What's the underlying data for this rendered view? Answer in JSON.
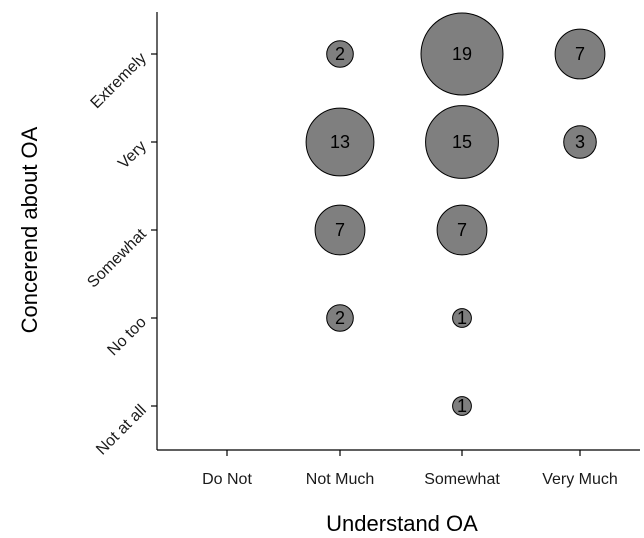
{
  "chart_data": {
    "type": "scatter",
    "title": "",
    "xlabel": "Understand OA",
    "ylabel": "Concerend about OA",
    "x_categories": [
      "Do Not",
      "Not Much",
      "Somewhat",
      "Very Much"
    ],
    "y_categories": [
      "Not at all",
      "No too",
      "Somewhat",
      "Very",
      "Extremely"
    ],
    "grid": false,
    "legend": "none",
    "bubble_color": "#7f7f7f",
    "points": [
      {
        "x": "Not Much",
        "y": "Extremely",
        "count": 2
      },
      {
        "x": "Somewhat",
        "y": "Extremely",
        "count": 19
      },
      {
        "x": "Very Much",
        "y": "Extremely",
        "count": 7
      },
      {
        "x": "Not Much",
        "y": "Very",
        "count": 13
      },
      {
        "x": "Somewhat",
        "y": "Very",
        "count": 15
      },
      {
        "x": "Very Much",
        "y": "Very",
        "count": 3
      },
      {
        "x": "Not Much",
        "y": "Somewhat",
        "count": 7
      },
      {
        "x": "Somewhat",
        "y": "Somewhat",
        "count": 7
      },
      {
        "x": "Not Much",
        "y": "No too",
        "count": 2
      },
      {
        "x": "Somewhat",
        "y": "No too",
        "count": 1
      },
      {
        "x": "Somewhat",
        "y": "Not at all",
        "count": 1
      }
    ]
  }
}
